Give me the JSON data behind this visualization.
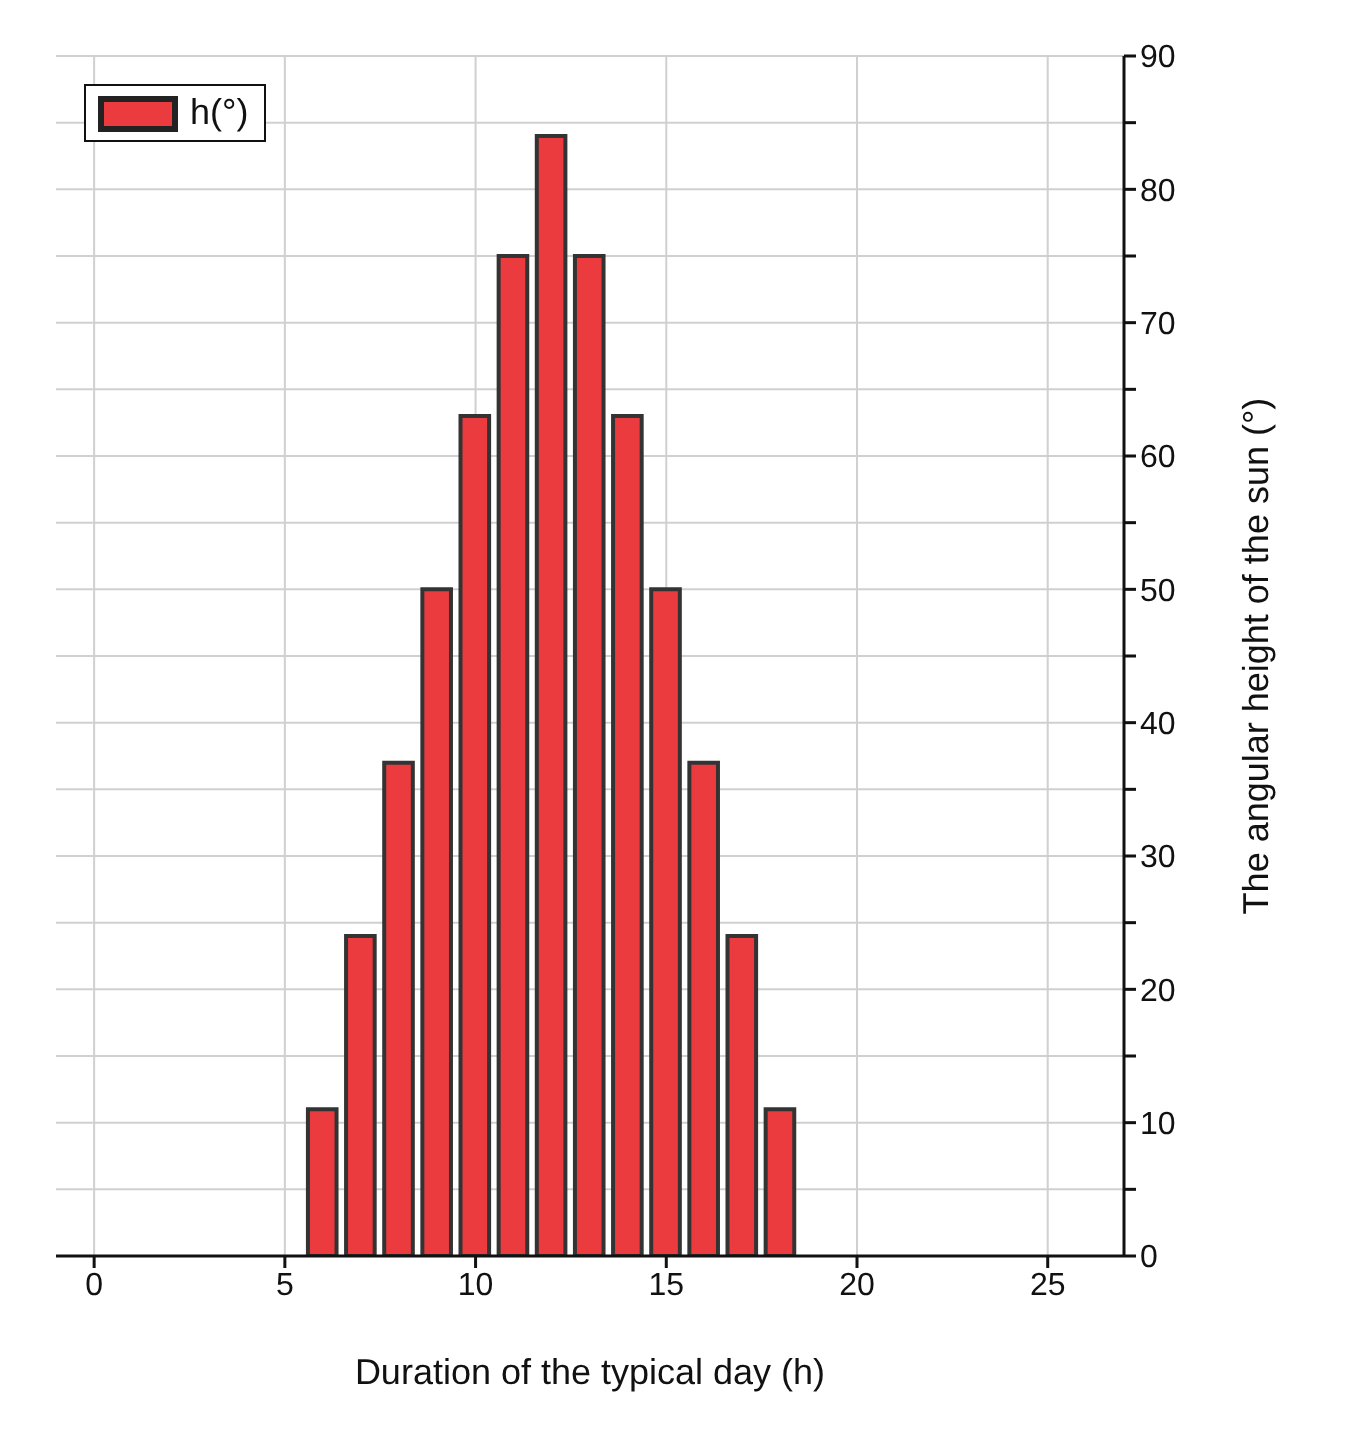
{
  "chart_data": {
    "type": "bar",
    "xlabel": "Duration of the typical day (h)",
    "ylabel": "The angular height of the sun (°)",
    "x": [
      0,
      1,
      2,
      3,
      4,
      5,
      6,
      7,
      8,
      9,
      10,
      11,
      12,
      13,
      14,
      15,
      16,
      17,
      18,
      19,
      20,
      21,
      22,
      23,
      24
    ],
    "series": [
      {
        "name": "h(°)",
        "color": "#ec3b3f",
        "values": [
          0,
          0,
          0,
          0,
          0,
          0,
          11,
          24,
          37,
          50,
          63,
          75,
          84,
          75,
          63,
          50,
          37,
          24,
          11,
          0,
          0,
          0,
          0,
          0,
          0
        ]
      }
    ],
    "xlim": [
      -1,
      27
    ],
    "xticks": [
      0,
      5,
      10,
      15,
      20,
      25
    ],
    "ylim": [
      0,
      90
    ],
    "yticks": [
      0,
      {
        "value": 5,
        "label": null
      },
      10,
      {
        "value": 15,
        "label": null
      },
      20,
      {
        "value": 25,
        "label": null
      },
      30,
      {
        "value": 35,
        "label": null
      },
      40,
      {
        "value": 45,
        "label": null
      },
      50,
      {
        "value": 55,
        "label": null
      },
      60,
      {
        "value": 65,
        "label": null
      },
      70,
      {
        "value": 75,
        "label": null
      },
      80,
      {
        "value": 85,
        "label": null
      },
      90
    ],
    "grid": true,
    "legend": "top left"
  }
}
